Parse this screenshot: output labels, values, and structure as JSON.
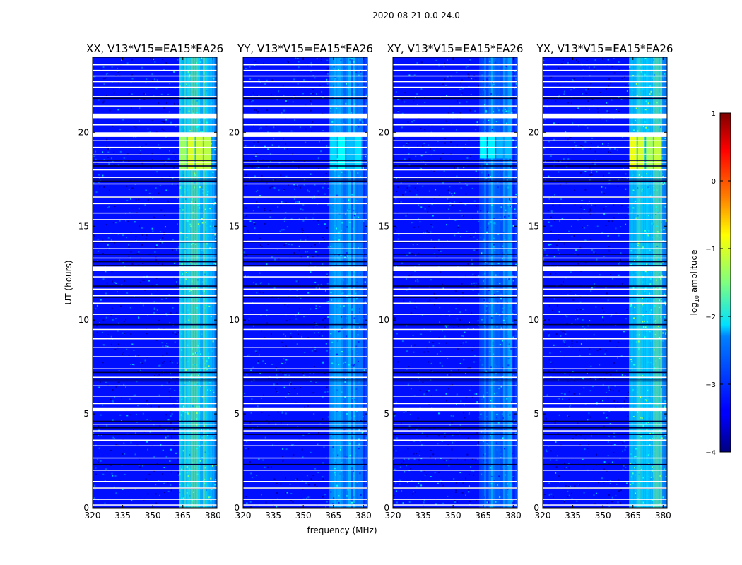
{
  "suptitle": "2020-08-21 0.0-24.0",
  "chart_data": {
    "type": "heatmap",
    "xlabel": "frequency (MHz)",
    "ylabel": "UT (hours)",
    "xlim": [
      320,
      382
    ],
    "ylim": [
      0,
      24
    ],
    "xticks": [
      320,
      335,
      350,
      365,
      380
    ],
    "yticks": [
      0,
      5,
      10,
      15,
      20
    ],
    "colorscale": "jet",
    "colorbar": {
      "label": "log",
      "label_sub": "10",
      "label_rest": " amplitude",
      "range": [
        -4,
        1
      ],
      "ticks": [
        1,
        0,
        -1,
        -2,
        -3,
        -4
      ]
    },
    "rfi_band_mhz": [
      363,
      382
    ],
    "flagged_bands_ut": [
      [
        20.75,
        21.0
      ],
      [
        19.75,
        20.0
      ],
      [
        12.6,
        12.85
      ],
      [
        5.15,
        5.35
      ]
    ],
    "blank_lines_ut": [
      0.15,
      0.45,
      1.05,
      1.4,
      2.0,
      2.65,
      3.3,
      3.6,
      4.1,
      4.45,
      5.55,
      5.95,
      6.5,
      6.95,
      7.4,
      8.05,
      8.55,
      9.0,
      9.5,
      10.3,
      10.9,
      11.3,
      11.65,
      12.3,
      13.3,
      13.8,
      14.2,
      14.6,
      15.35,
      15.7,
      16.2,
      16.55,
      17.25,
      17.6,
      18.0,
      18.4,
      18.8,
      19.2,
      19.55,
      20.4,
      21.4,
      21.9,
      22.4,
      22.7,
      23.0,
      23.3,
      23.6
    ],
    "dark_lines_ut": [
      1.0,
      2.3,
      3.9,
      4.25,
      4.6,
      6.75,
      6.85,
      7.2,
      9.75,
      11.2,
      11.8,
      12.9,
      13.1,
      13.5,
      14.15,
      16.5,
      17.4,
      17.5,
      18.2,
      18.5,
      21.8
    ],
    "panels": [
      {
        "title": "XX, V13*V15=EA15*EA26",
        "rfi_level": -2.0,
        "burst": {
          "ut": [
            18.0,
            19.8
          ],
          "level": -1.2
        }
      },
      {
        "title": "YY, V13*V15=EA15*EA26",
        "rfi_level": -2.6,
        "burst": {
          "ut": [
            18.0,
            19.8
          ],
          "level": -2.3
        }
      },
      {
        "title": "XY, V13*V15=EA15*EA26",
        "rfi_level": -2.7,
        "burst": {
          "ut": [
            18.6,
            19.8
          ],
          "level": -2.3
        }
      },
      {
        "title": "YX, V13*V15=EA15*EA26",
        "rfi_level": -2.0,
        "burst": {
          "ut": [
            18.0,
            19.8
          ],
          "level": -1.1
        }
      }
    ]
  }
}
